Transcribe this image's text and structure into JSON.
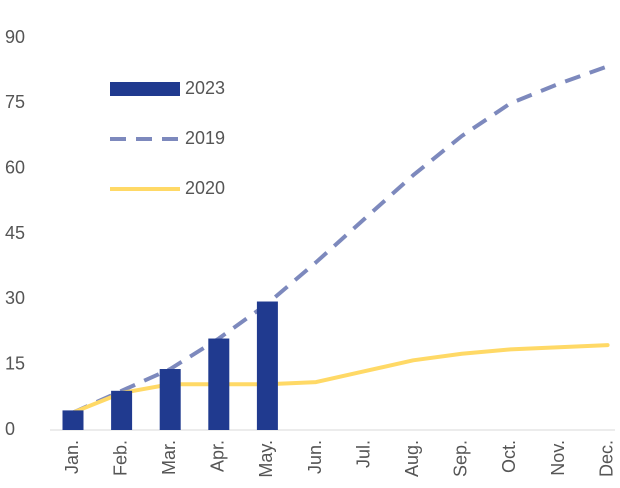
{
  "chart_data": {
    "type": "bar",
    "categories": [
      "Jan.",
      "Feb.",
      "Mar.",
      "Apr.",
      "May.",
      "Jun.",
      "Jul.",
      "Aug.",
      "Sep.",
      "Oct.",
      "Nov.",
      "Dec."
    ],
    "series": [
      {
        "name": "2023",
        "type": "bar",
        "color": "#203a8f",
        "values": [
          4.5,
          9,
          14,
          21,
          29.5,
          null,
          null,
          null,
          null,
          null,
          null,
          null
        ]
      },
      {
        "name": "2019",
        "type": "line",
        "dashed": true,
        "color": "#7d89bd",
        "values": [
          4,
          9,
          14,
          21,
          29,
          38.5,
          48.5,
          58.5,
          67.5,
          75,
          79.5,
          83.5
        ]
      },
      {
        "name": "2020",
        "type": "line",
        "dashed": false,
        "color": "#ffd966",
        "values": [
          4,
          8.5,
          10.5,
          10.5,
          10.5,
          11,
          13.5,
          16,
          17.5,
          18.5,
          19,
          19.5
        ]
      }
    ],
    "ylim": [
      0,
      90
    ],
    "yticks": [
      0,
      15,
      30,
      45,
      60,
      75,
      90
    ],
    "grid": false,
    "legend": "top-left"
  }
}
